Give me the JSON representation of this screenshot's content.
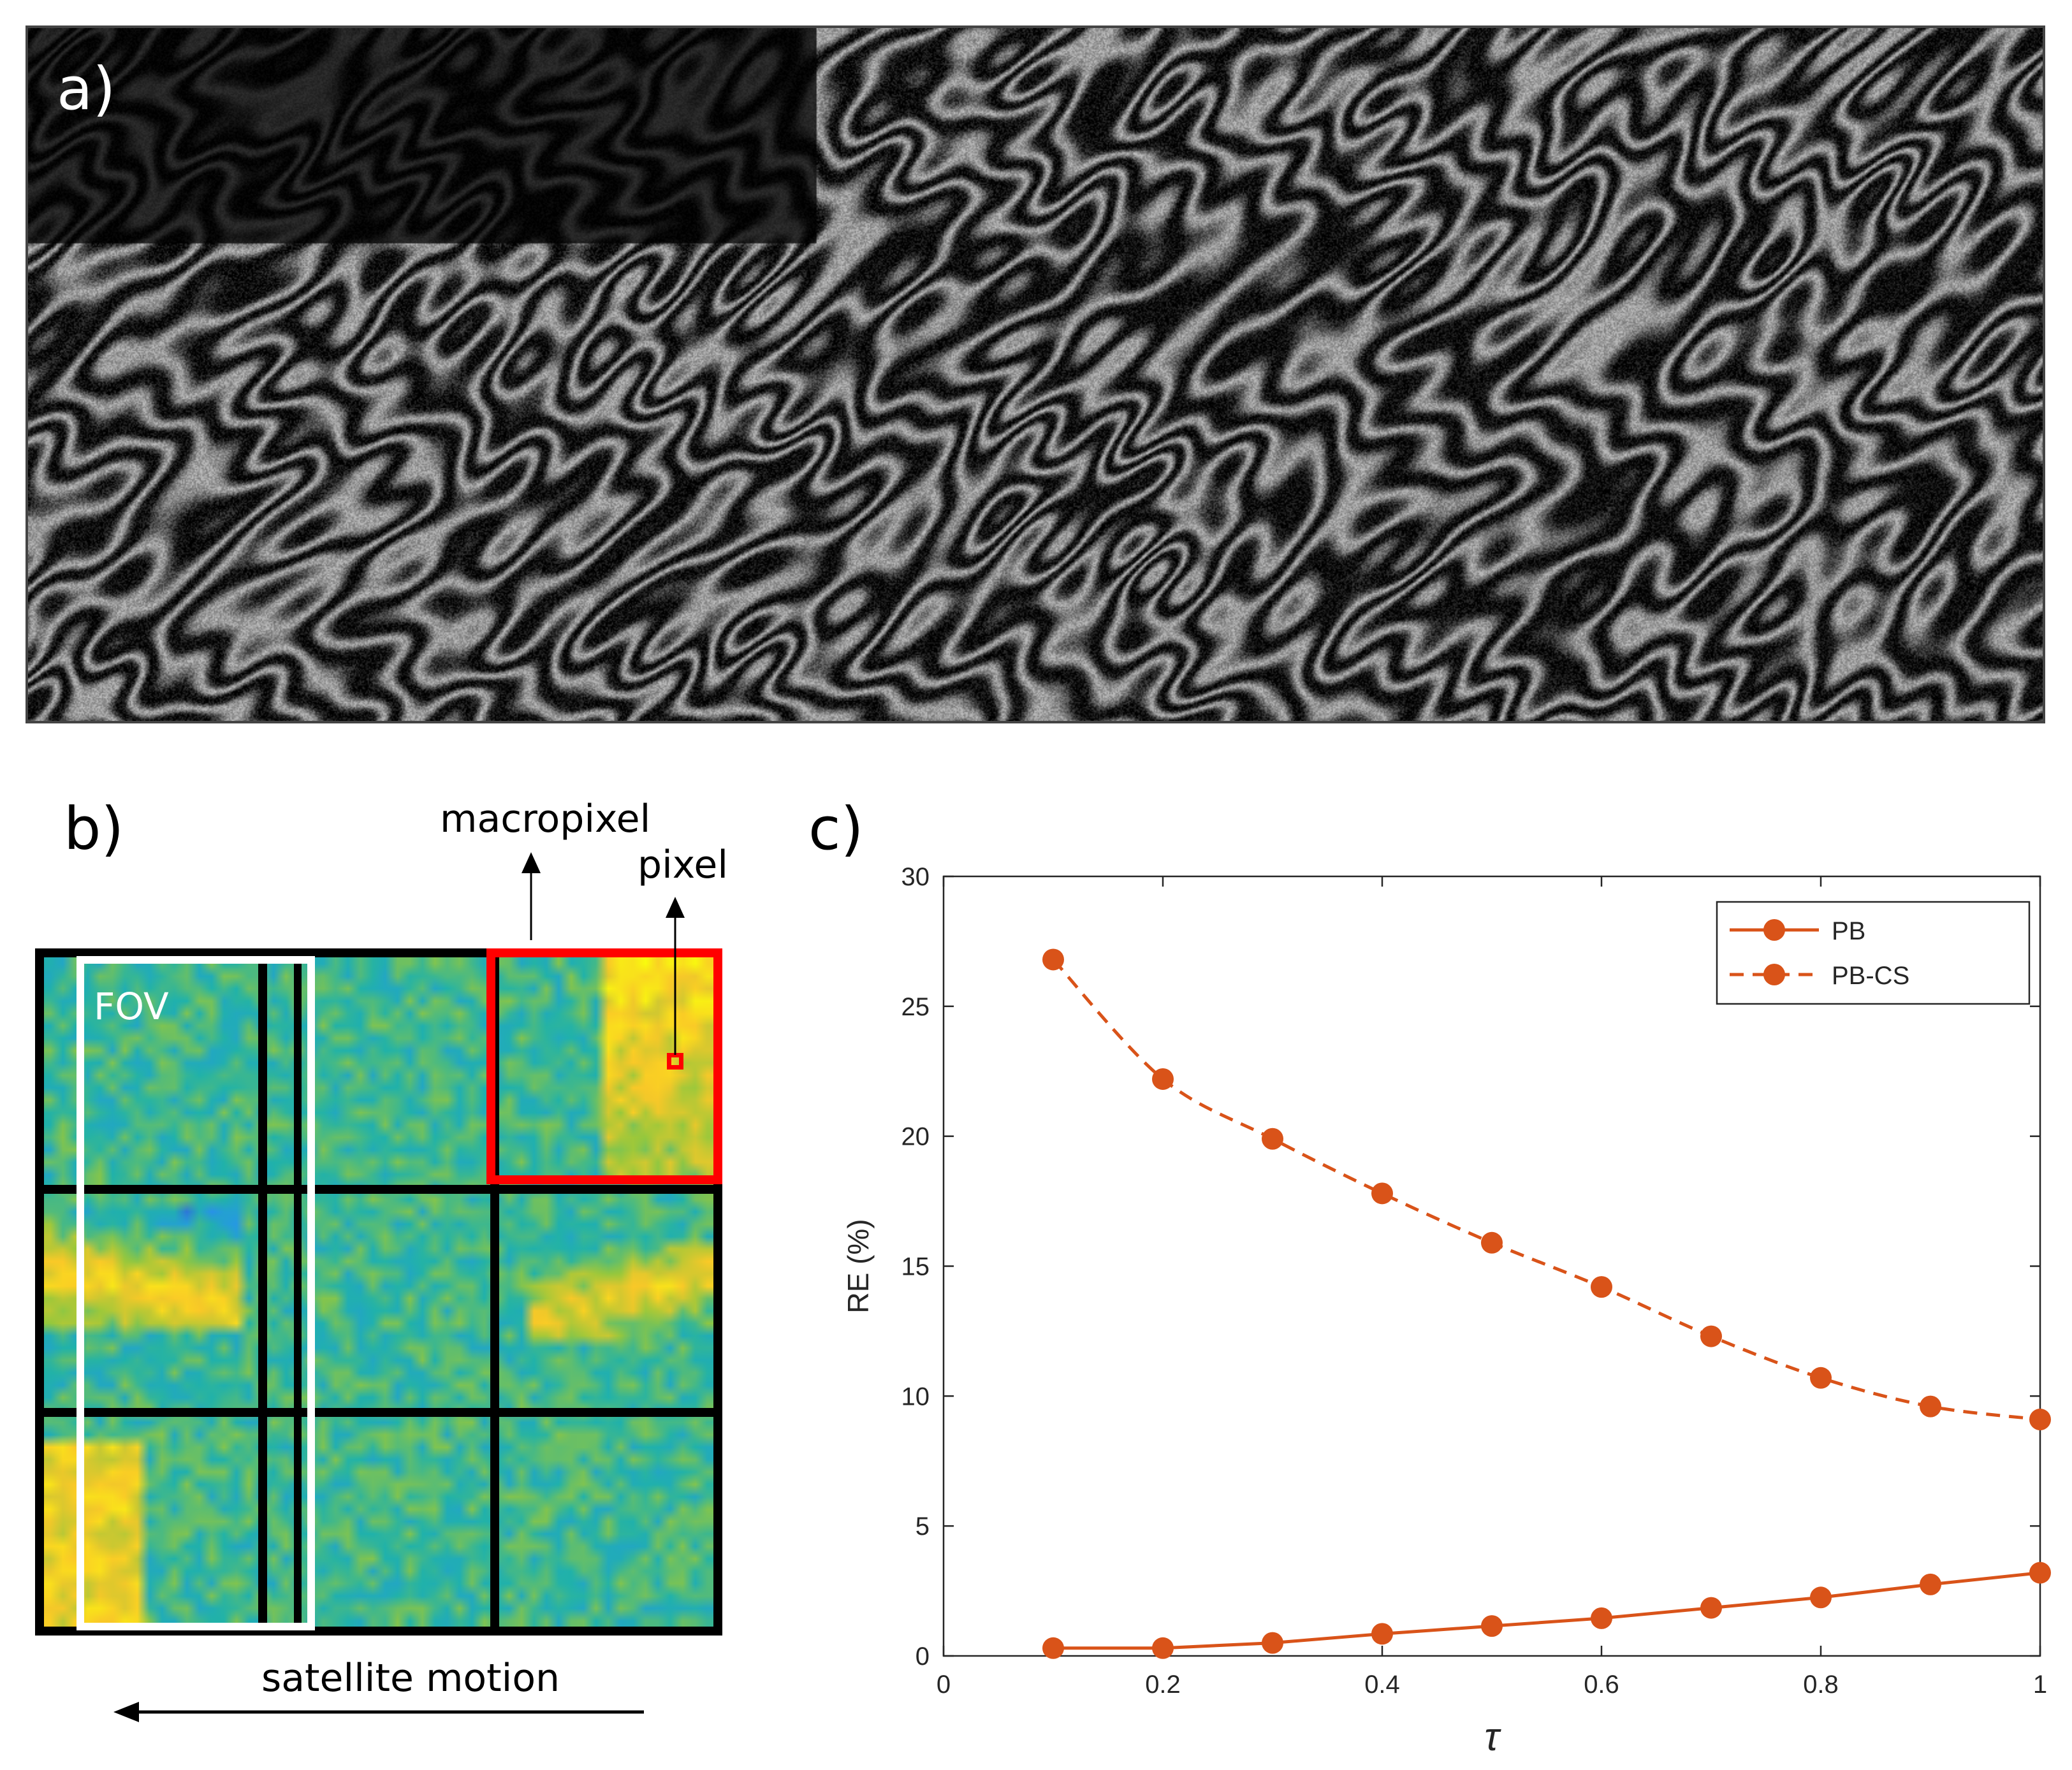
{
  "panels": {
    "a": {
      "label": "a)"
    },
    "b": {
      "label": "b)",
      "fov_label": "FOV",
      "macropixel_label": "macropixel",
      "pixel_label": "pixel",
      "motion_label": "satellite motion"
    },
    "c": {
      "label": "c)"
    }
  },
  "colors": {
    "series": "#d95319",
    "macropixel_border": "#ff0000",
    "fov_border": "#ffffff",
    "grid": "#000000"
  },
  "chart_data": {
    "type": "line",
    "xlabel": "τ",
    "ylabel": "RE (%)",
    "xlim": [
      0,
      1
    ],
    "ylim": [
      0,
      30
    ],
    "xticks": [
      "0",
      "0.2",
      "0.4",
      "0.6",
      "0.8",
      "1"
    ],
    "yticks": [
      "0",
      "5",
      "10",
      "15",
      "20",
      "25",
      "30"
    ],
    "legend_position": "top-right",
    "x": [
      0.1,
      0.2,
      0.3,
      0.4,
      0.5,
      0.6,
      0.7,
      0.8,
      0.9,
      1.0
    ],
    "series": [
      {
        "name": "PB",
        "line": "solid",
        "marker": "circle",
        "values": [
          0.3,
          0.3,
          0.5,
          0.85,
          1.15,
          1.45,
          1.85,
          2.25,
          2.75,
          3.2
        ]
      },
      {
        "name": "PB-CS",
        "line": "dashed",
        "marker": "circle",
        "values": [
          26.8,
          22.2,
          19.9,
          17.8,
          15.9,
          14.2,
          12.3,
          10.7,
          9.6,
          9.1
        ]
      }
    ]
  }
}
